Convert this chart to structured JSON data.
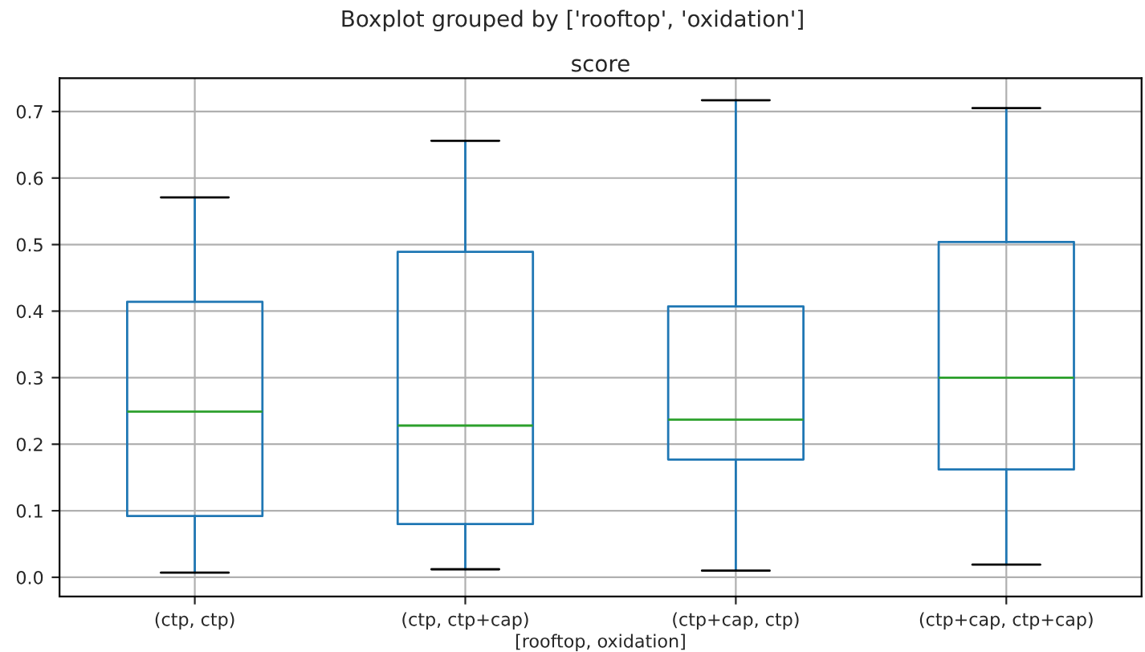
{
  "chart_data": {
    "type": "box",
    "title": "Boxplot grouped by ['rooftop', 'oxidation']",
    "subtitle": "score",
    "xlabel": "[rooftop, oxidation]",
    "categories": [
      "(ctp, ctp)",
      "(ctp, ctp+cap)",
      "(ctp+cap, ctp)",
      "(ctp+cap, ctp+cap)"
    ],
    "color": "#1f77b4",
    "boxes": [
      {
        "low": 0.007,
        "q1": 0.092,
        "median": 0.249,
        "q3": 0.414,
        "high": 0.571
      },
      {
        "low": 0.012,
        "q1": 0.08,
        "median": 0.228,
        "q3": 0.489,
        "high": 0.656
      },
      {
        "low": 0.01,
        "q1": 0.177,
        "median": 0.237,
        "q3": 0.407,
        "high": 0.717
      },
      {
        "low": 0.019,
        "q1": 0.162,
        "median": 0.3,
        "q3": 0.504,
        "high": 0.705
      }
    ],
    "ylim": [
      -0.029,
      0.75
    ],
    "yticks": [
      {
        "value": 0,
        "label": "0.0"
      },
      0.1,
      0.2,
      0.3,
      0.4,
      0.5,
      0.6,
      0.7
    ],
    "grid": true
  }
}
